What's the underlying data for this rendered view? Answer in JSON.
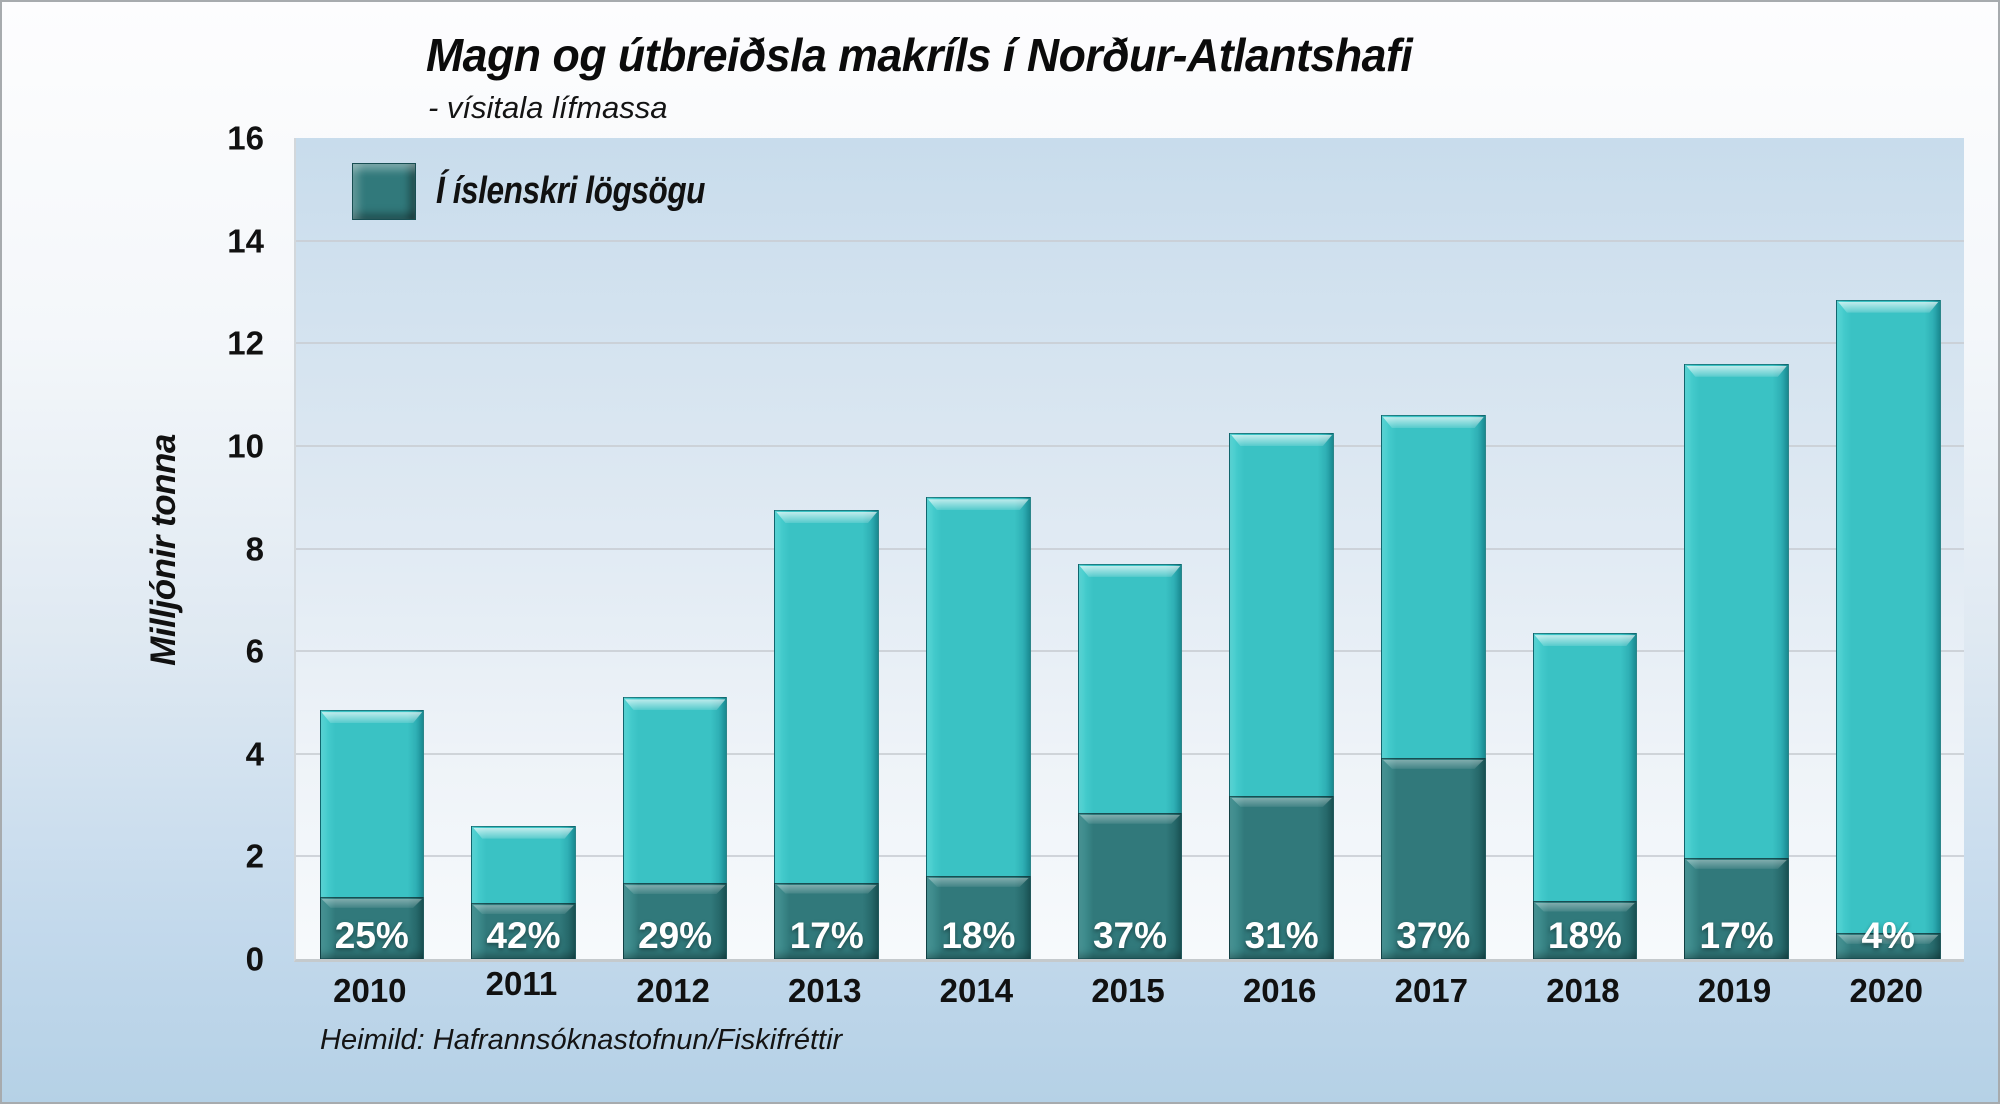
{
  "title": "Magn og útbreiðsla makríls í Norður-Atlantshafi",
  "subtitle": "- vísitala lífmassa",
  "legend": {
    "label": "Í íslenskri lögsögu"
  },
  "y_axis": {
    "title": "Milljónir tonna",
    "ticks": [
      0,
      2,
      4,
      6,
      8,
      10,
      12,
      14,
      16
    ]
  },
  "source": "Heimild: Hafrannsóknastofnun/Fiskifréttir",
  "colors": {
    "total_bar": "#3ac2c4",
    "iceland_bar": "#31797b",
    "plot_background_top": "#c8dcec",
    "plot_background_bottom": "#f7fafc",
    "canvas_background_top": "#fdfdfe",
    "canvas_background_bottom": "#b5d1e6",
    "gridline": "#c9ced3",
    "percent_text": "#ffffff",
    "text": "#111111"
  },
  "chart_data": {
    "type": "bar",
    "title": "Magn og útbreiðsla makríls í Norður-Atlantshafi",
    "subtitle": "- vísitala lífmassa",
    "categories": [
      "2010",
      "2011",
      "2012",
      "2013",
      "2014",
      "2015",
      "2016",
      "2017",
      "2018",
      "2019",
      "2020"
    ],
    "totals": [
      4.85,
      2.6,
      5.1,
      8.75,
      9.0,
      7.7,
      10.25,
      10.6,
      6.35,
      11.6,
      12.85
    ],
    "iceland_values": [
      1.21,
      1.09,
      1.48,
      1.49,
      1.62,
      2.85,
      3.18,
      3.92,
      1.14,
      1.97,
      0.51
    ],
    "iceland_share_pct": [
      25,
      42,
      29,
      17,
      18,
      37,
      31,
      37,
      18,
      17,
      4
    ],
    "iceland_series_label": "Í íslenskri lögsögu",
    "xlabel": "",
    "ylabel": "Milljónir tonna",
    "ylim": [
      0,
      16
    ],
    "ytick_step": 2,
    "grid": true,
    "legend_position": "inside-top-left"
  }
}
